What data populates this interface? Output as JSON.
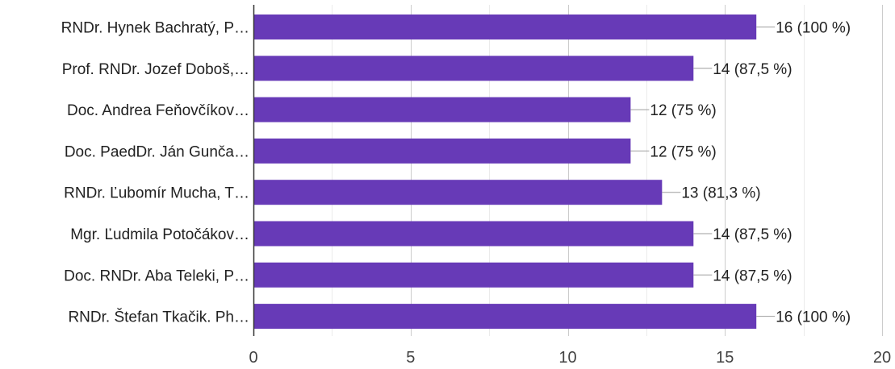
{
  "chart_data": {
    "type": "bar",
    "orientation": "horizontal",
    "title": "",
    "xlabel": "",
    "ylabel": "",
    "grid": true,
    "xlim": [
      0,
      20
    ],
    "x_ticks": [
      "0",
      "5",
      "10",
      "15",
      "20"
    ],
    "categories": [
      "RNDr. Hynek Bachratý, P…",
      "Prof. RNDr. Jozef Doboš,…",
      "Doc. Andrea Feňovčíkov…",
      "Doc. PaedDr. Ján Gunča…",
      "RNDr. Ľubomír Mucha, T…",
      "Mgr. Ľudmila Potočákov…",
      "Doc. RNDr. Aba Teleki, P…",
      "RNDr. Štefan Tkačik. Ph…"
    ],
    "values": [
      16,
      14,
      12,
      12,
      13,
      14,
      14,
      16
    ],
    "data_labels": [
      "16 (100 %)",
      "14 (87,5 %)",
      "12 (75 %)",
      "12 (75 %)",
      "13 (81,3 %)",
      "14 (87,5 %)",
      "14 (87,5 %)",
      "16 (100 %)"
    ],
    "bar_color": "#673ab7",
    "text_color": "#212121"
  }
}
